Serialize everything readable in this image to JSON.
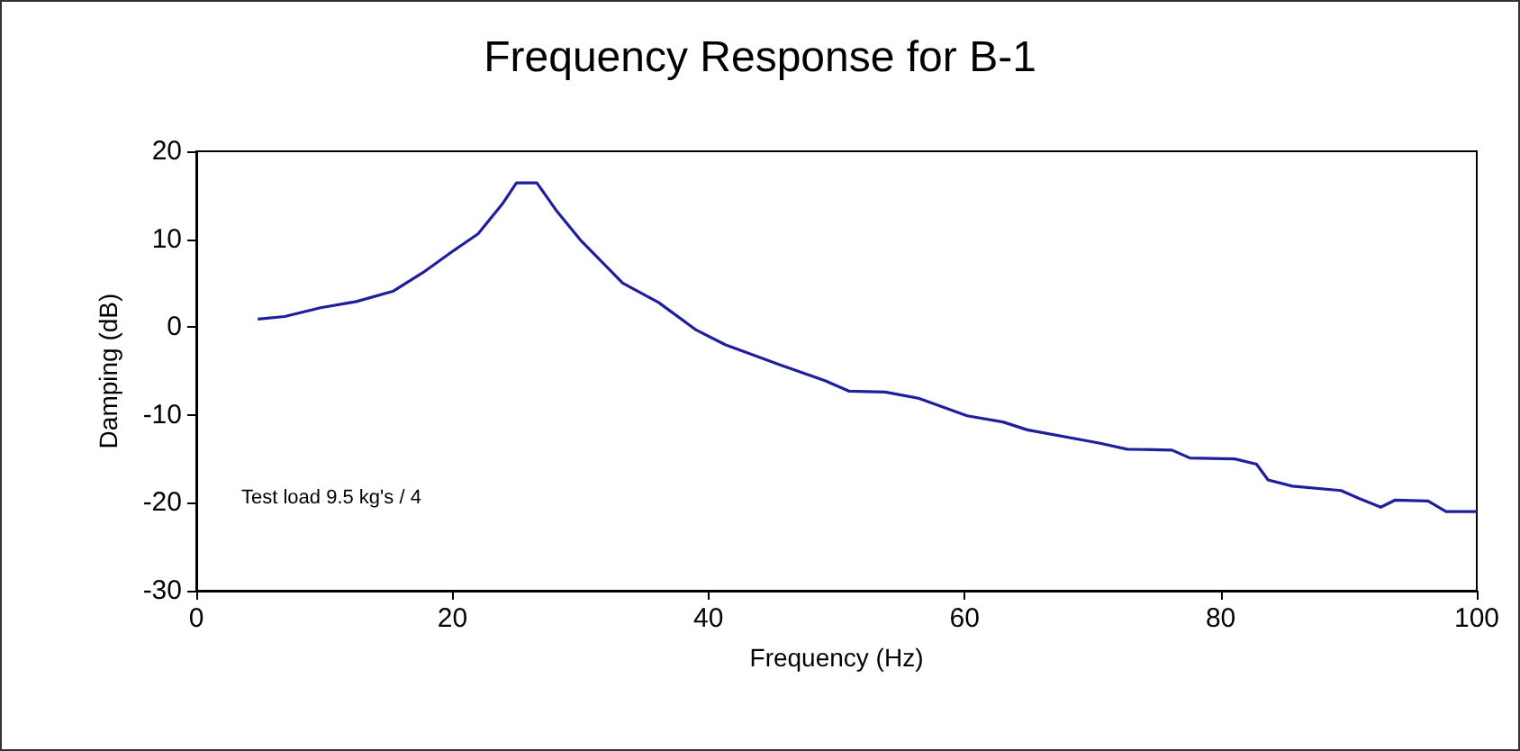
{
  "chart_data": {
    "type": "line",
    "title": "Frequency Response for B-1",
    "xlabel": "Frequency (Hz)",
    "ylabel": "Damping (dB)",
    "annotations": [
      "Test load 9.5 kg's / 4"
    ],
    "xlim": [
      0,
      100
    ],
    "xticks": [
      0,
      20,
      40,
      60,
      80,
      100
    ],
    "ylim": [
      -30,
      20
    ],
    "yticks": [
      -30,
      -20,
      -10,
      0,
      10,
      20
    ],
    "grid": false,
    "marker": "none",
    "line_style": "solid",
    "series": [
      {
        "color": "#1f1f9e",
        "x": [
          4.8,
          6.9,
          9.7,
          12.5,
          15.4,
          17.7,
          20.0,
          22.0,
          23.9,
          25.0,
          26.6,
          28.1,
          30.0,
          32.3,
          33.3,
          36.1,
          39.0,
          41.3,
          45.6,
          49.1,
          51,
          53.8,
          56.4,
          60.2,
          63,
          64.9,
          70.5,
          72.7,
          76.2,
          77.6,
          81.1,
          82.8,
          83.7,
          85.6,
          89.4,
          90.8,
          92.5,
          93.6,
          96.2,
          97.6,
          100
        ],
        "values": [
          0.9,
          1.2,
          2.2,
          2.9,
          4.1,
          6.2,
          8.6,
          10.6,
          14.0,
          16.4,
          16.4,
          13.3,
          9.9,
          6.5,
          5.0,
          2.8,
          -0.3,
          -2.0,
          -4.3,
          -6.1,
          -7.3,
          -7.4,
          -8.1,
          -10.1,
          -10.8,
          -11.7,
          -13.2,
          -13.9,
          -14.0,
          -14.9,
          -15.0,
          -15.6,
          -17.4,
          -18.1,
          -18.6,
          -19.5,
          -20.5,
          -19.7,
          -19.8,
          -21.0,
          -21.0
        ]
      }
    ]
  }
}
